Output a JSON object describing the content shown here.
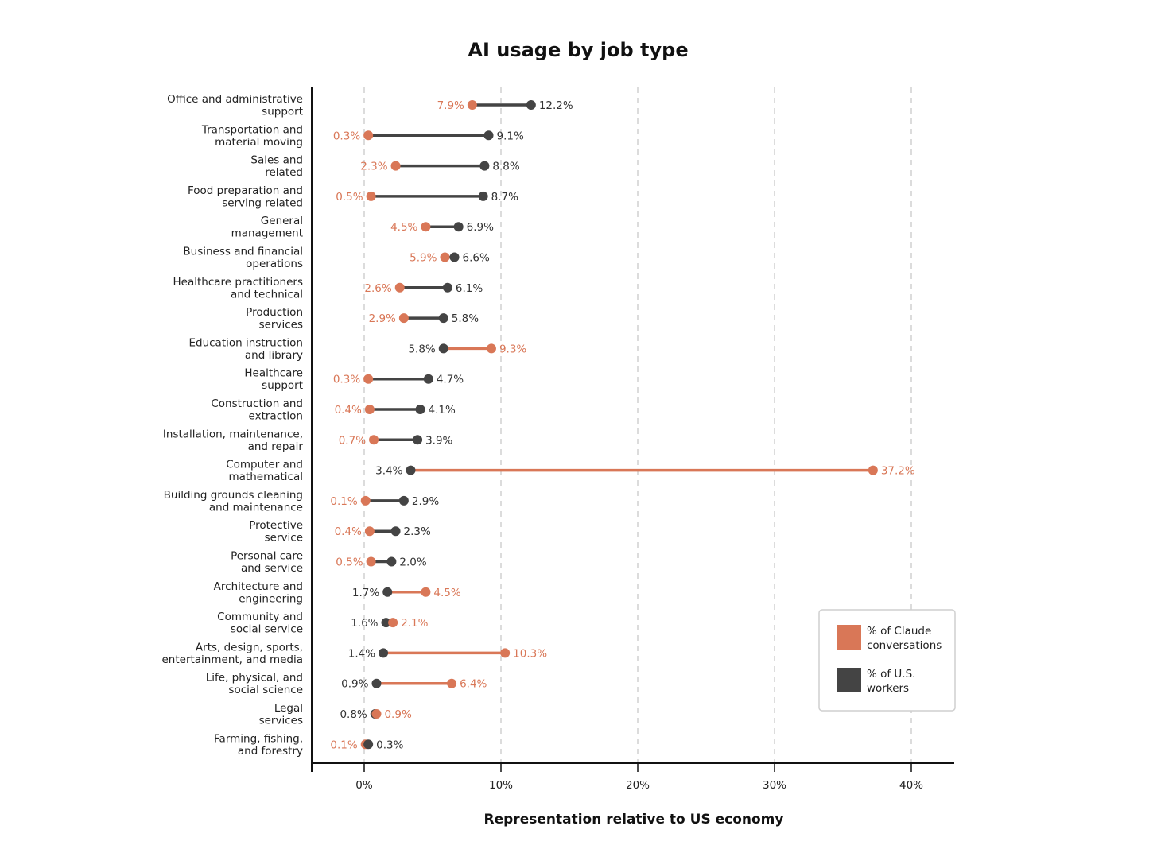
{
  "colors": {
    "claude": "#D97757",
    "workers": "#444444",
    "grid": "#d0d0d0",
    "axis": "#111111"
  },
  "chart_data": {
    "type": "dumbbell",
    "title": "AI usage by job type",
    "xlabel": "Representation relative to US economy",
    "ylabel": "",
    "xlim": [
      -3.8,
      43
    ],
    "xticks": [
      {
        "value": 0,
        "label": "0%"
      },
      {
        "value": 10,
        "label": "10%"
      },
      {
        "value": 20,
        "label": "20%"
      },
      {
        "value": 30,
        "label": "30%"
      },
      {
        "value": 40,
        "label": "40%"
      }
    ],
    "grid": "vertical dashed",
    "legend": {
      "position": "bottom-right",
      "items": [
        {
          "key": "claude",
          "label_lines": [
            "% of Claude",
            "conversations"
          ]
        },
        {
          "key": "workers",
          "label_lines": [
            "% of U.S.",
            "workers"
          ]
        }
      ]
    },
    "categories": [
      {
        "lines": [
          "Office and administrative",
          "support"
        ],
        "claude": 7.9,
        "claude_label": "7.9%",
        "workers": 12.2,
        "workers_label": "12.2%"
      },
      {
        "lines": [
          "Transportation and",
          "material moving"
        ],
        "claude": 0.3,
        "claude_label": "0.3%",
        "workers": 9.1,
        "workers_label": "9.1%"
      },
      {
        "lines": [
          "Sales and",
          "related"
        ],
        "claude": 2.3,
        "claude_label": "2.3%",
        "workers": 8.8,
        "workers_label": "8.8%"
      },
      {
        "lines": [
          "Food preparation and",
          "serving related"
        ],
        "claude": 0.5,
        "claude_label": "0.5%",
        "workers": 8.7,
        "workers_label": "8.7%"
      },
      {
        "lines": [
          "General",
          "management"
        ],
        "claude": 4.5,
        "claude_label": "4.5%",
        "workers": 6.9,
        "workers_label": "6.9%"
      },
      {
        "lines": [
          "Business and financial",
          "operations"
        ],
        "claude": 5.9,
        "claude_label": "5.9%",
        "workers": 6.6,
        "workers_label": "6.6%"
      },
      {
        "lines": [
          "Healthcare practitioners",
          "and technical"
        ],
        "claude": 2.6,
        "claude_label": "2.6%",
        "workers": 6.1,
        "workers_label": "6.1%"
      },
      {
        "lines": [
          "Production",
          "services"
        ],
        "claude": 2.9,
        "claude_label": "2.9%",
        "workers": 5.8,
        "workers_label": "5.8%"
      },
      {
        "lines": [
          "Education instruction",
          "and library"
        ],
        "claude": 9.3,
        "claude_label": "9.3%",
        "workers": 5.8,
        "workers_label": "5.8%"
      },
      {
        "lines": [
          "Healthcare",
          "support"
        ],
        "claude": 0.3,
        "claude_label": "0.3%",
        "workers": 4.7,
        "workers_label": "4.7%"
      },
      {
        "lines": [
          "Construction and",
          "extraction"
        ],
        "claude": 0.4,
        "claude_label": "0.4%",
        "workers": 4.1,
        "workers_label": "4.1%"
      },
      {
        "lines": [
          "Installation, maintenance,",
          "and repair"
        ],
        "claude": 0.7,
        "claude_label": "0.7%",
        "workers": 3.9,
        "workers_label": "3.9%"
      },
      {
        "lines": [
          "Computer and",
          "mathematical"
        ],
        "claude": 37.2,
        "claude_label": "37.2%",
        "workers": 3.4,
        "workers_label": "3.4%"
      },
      {
        "lines": [
          "Building grounds cleaning",
          "and maintenance"
        ],
        "claude": 0.1,
        "claude_label": "0.1%",
        "workers": 2.9,
        "workers_label": "2.9%"
      },
      {
        "lines": [
          "Protective",
          "service"
        ],
        "claude": 0.4,
        "claude_label": "0.4%",
        "workers": 2.3,
        "workers_label": "2.3%"
      },
      {
        "lines": [
          "Personal care",
          "and service"
        ],
        "claude": 0.5,
        "claude_label": "0.5%",
        "workers": 2.0,
        "workers_label": "2.0%"
      },
      {
        "lines": [
          "Architecture and",
          "engineering"
        ],
        "claude": 4.5,
        "claude_label": "4.5%",
        "workers": 1.7,
        "workers_label": "1.7%"
      },
      {
        "lines": [
          "Community and",
          "social service"
        ],
        "claude": 2.1,
        "claude_label": "2.1%",
        "workers": 1.6,
        "workers_label": "1.6%"
      },
      {
        "lines": [
          "Arts, design, sports,",
          "entertainment, and media"
        ],
        "claude": 10.3,
        "claude_label": "10.3%",
        "workers": 1.4,
        "workers_label": "1.4%"
      },
      {
        "lines": [
          "Life, physical, and",
          "social science"
        ],
        "claude": 6.4,
        "claude_label": "6.4%",
        "workers": 0.9,
        "workers_label": "0.9%"
      },
      {
        "lines": [
          "Legal",
          "services"
        ],
        "claude": 0.9,
        "claude_label": "0.9%",
        "workers": 0.8,
        "workers_label": "0.8%"
      },
      {
        "lines": [
          "Farming, fishing,",
          "and forestry"
        ],
        "claude": 0.1,
        "claude_label": "0.1%",
        "workers": 0.3,
        "workers_label": "0.3%"
      }
    ]
  }
}
